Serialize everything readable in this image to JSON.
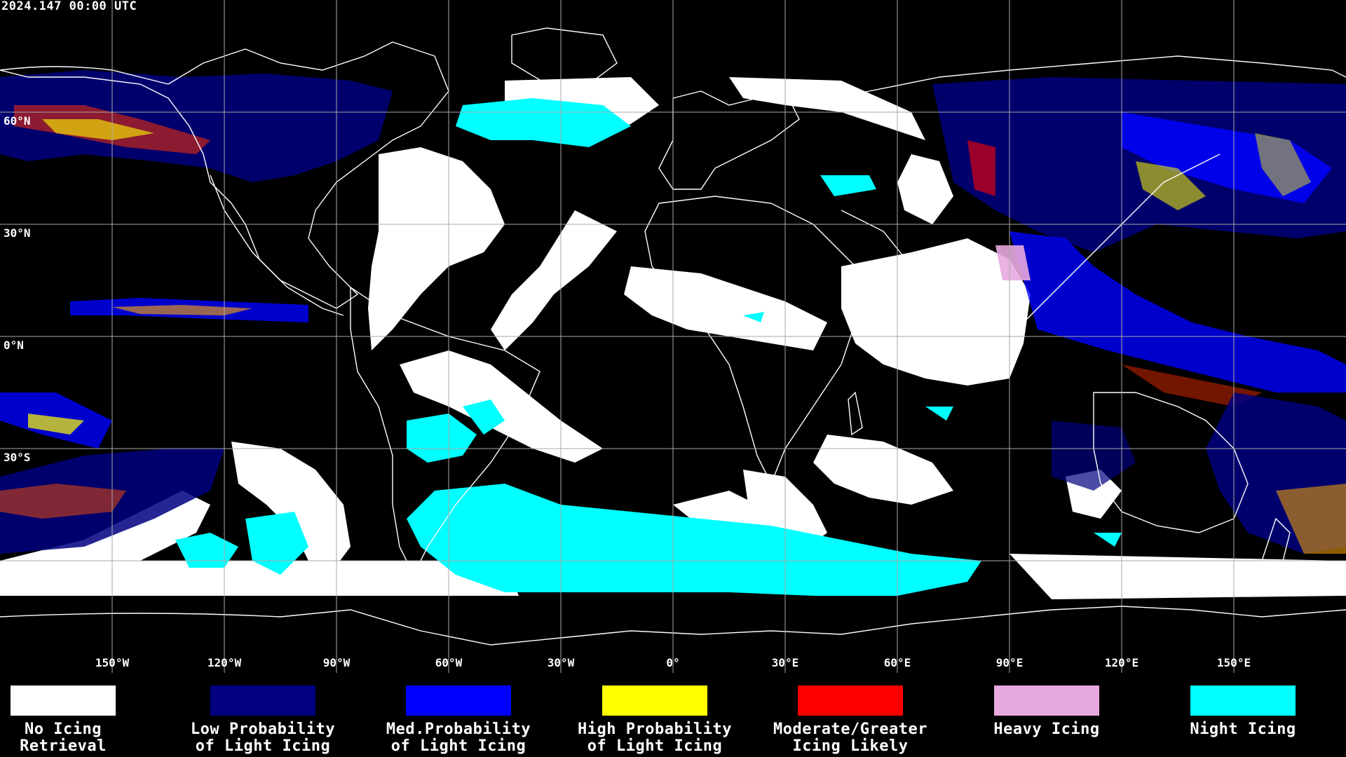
{
  "timestamp": "2024.147 00:00 UTC",
  "lat_labels": [
    "60°N",
    "30°N",
    "0°N",
    "30°S"
  ],
  "lon_labels": [
    "150°W",
    "120°W",
    "90°W",
    "60°W",
    "30°W",
    "0°",
    "30°E",
    "60°E",
    "90°E",
    "120°E",
    "150°E"
  ],
  "legend": [
    {
      "label": "No Icing\nRetrieval",
      "color": "#ffffff"
    },
    {
      "label": "Low Probability\nof Light Icing",
      "color": "#000080"
    },
    {
      "label": "Med.Probability\nof Light Icing",
      "color": "#0000ff"
    },
    {
      "label": "High Probability\nof Light Icing",
      "color": "#ffff00"
    },
    {
      "label": "Moderate/Greater\nIcing Likely",
      "color": "#ff0000"
    },
    {
      "label": "Heavy Icing",
      "color": "#e8a8e0"
    },
    {
      "label": "Night Icing",
      "color": "#00ffff"
    }
  ]
}
